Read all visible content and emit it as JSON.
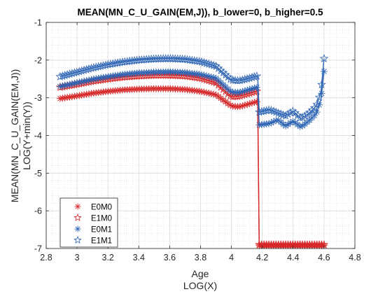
{
  "chart_data": {
    "type": "line",
    "title": "MEAN(MN_C_U_GAIN(EM,J)), b_lower=0, b_higher=0.5",
    "xlabel": "Age",
    "xlabel2": "LOG(X)",
    "ylabel": "MEAN(MN_C_U_GAIN(EM,J))",
    "ylabel2": "LOG(Y+min(Y))",
    "xlim": [
      2.8,
      4.8
    ],
    "ylim": [
      -7,
      -1
    ],
    "xticks": [
      2.8,
      3,
      3.2,
      3.4,
      3.6,
      3.8,
      4,
      4.2,
      4.4,
      4.6,
      4.8
    ],
    "yticks": [
      -7,
      -6,
      -5,
      -4,
      -3,
      -2,
      -1
    ],
    "xtick_labels": [
      "2.8",
      "3",
      "3.2",
      "3.4",
      "3.6",
      "3.8",
      "4",
      "4.2",
      "4.4",
      "4.6",
      "4.8"
    ],
    "ytick_labels": [
      "-7",
      "-6",
      "-5",
      "-4",
      "-3",
      "-2",
      "-1"
    ],
    "grid": true,
    "minor_grid": true,
    "legend_position": "bottom-left",
    "series": [
      {
        "name": "E0M0",
        "color": "#d62728",
        "marker": "asterisk",
        "x": [
          2.89,
          3.0,
          3.1,
          3.2,
          3.3,
          3.4,
          3.5,
          3.6,
          3.7,
          3.8,
          3.9,
          4.0,
          4.05,
          4.1,
          4.15,
          4.17,
          4.18,
          4.3,
          4.45,
          4.6
        ],
        "y": [
          -3.02,
          -2.95,
          -2.88,
          -2.83,
          -2.79,
          -2.77,
          -2.76,
          -2.76,
          -2.78,
          -2.83,
          -2.92,
          -3.22,
          -3.24,
          -3.18,
          -3.12,
          -3.1,
          -6.92,
          -6.92,
          -6.92,
          -6.92
        ]
      },
      {
        "name": "E1M0",
        "color": "#d62728",
        "marker": "pentagram",
        "x": [
          2.89,
          3.0,
          3.1,
          3.2,
          3.3,
          3.4,
          3.5,
          3.6,
          3.7,
          3.8,
          3.9,
          4.0,
          4.05,
          4.1,
          4.15,
          4.17,
          4.18,
          4.3,
          4.45,
          4.6
        ],
        "y": [
          -2.72,
          -2.64,
          -2.56,
          -2.5,
          -2.45,
          -2.42,
          -2.4,
          -2.4,
          -2.42,
          -2.48,
          -2.6,
          -2.97,
          -2.96,
          -2.9,
          -2.84,
          -2.82,
          -6.9,
          -6.9,
          -6.9,
          -6.9
        ]
      },
      {
        "name": "E0M1",
        "color": "#2e64b4",
        "marker": "asterisk",
        "x": [
          2.89,
          3.0,
          3.1,
          3.2,
          3.3,
          3.4,
          3.5,
          3.6,
          3.7,
          3.8,
          3.9,
          4.0,
          4.05,
          4.1,
          4.15,
          4.17,
          4.18,
          4.25,
          4.3,
          4.35,
          4.4,
          4.45,
          4.5,
          4.55,
          4.58,
          4.6
        ],
        "y": [
          -2.7,
          -2.6,
          -2.51,
          -2.44,
          -2.38,
          -2.34,
          -2.32,
          -2.31,
          -2.33,
          -2.38,
          -2.48,
          -2.85,
          -2.86,
          -2.8,
          -2.74,
          -2.72,
          -3.72,
          -3.68,
          -3.58,
          -3.75,
          -3.62,
          -3.78,
          -3.62,
          -3.42,
          -3.05,
          -2.3
        ]
      },
      {
        "name": "E1M1",
        "color": "#2e64b4",
        "marker": "pentagram",
        "x": [
          2.89,
          3.0,
          3.1,
          3.2,
          3.3,
          3.4,
          3.5,
          3.6,
          3.7,
          3.8,
          3.9,
          4.0,
          4.05,
          4.1,
          4.15,
          4.17,
          4.18,
          4.25,
          4.3,
          4.35,
          4.4,
          4.45,
          4.5,
          4.55,
          4.58,
          4.6
        ],
        "y": [
          -2.44,
          -2.32,
          -2.21,
          -2.12,
          -2.05,
          -2.0,
          -1.97,
          -1.96,
          -1.98,
          -2.04,
          -2.16,
          -2.53,
          -2.55,
          -2.5,
          -2.44,
          -2.42,
          -3.38,
          -3.32,
          -3.4,
          -3.48,
          -3.35,
          -3.55,
          -3.42,
          -3.22,
          -2.85,
          -1.96
        ]
      }
    ]
  }
}
